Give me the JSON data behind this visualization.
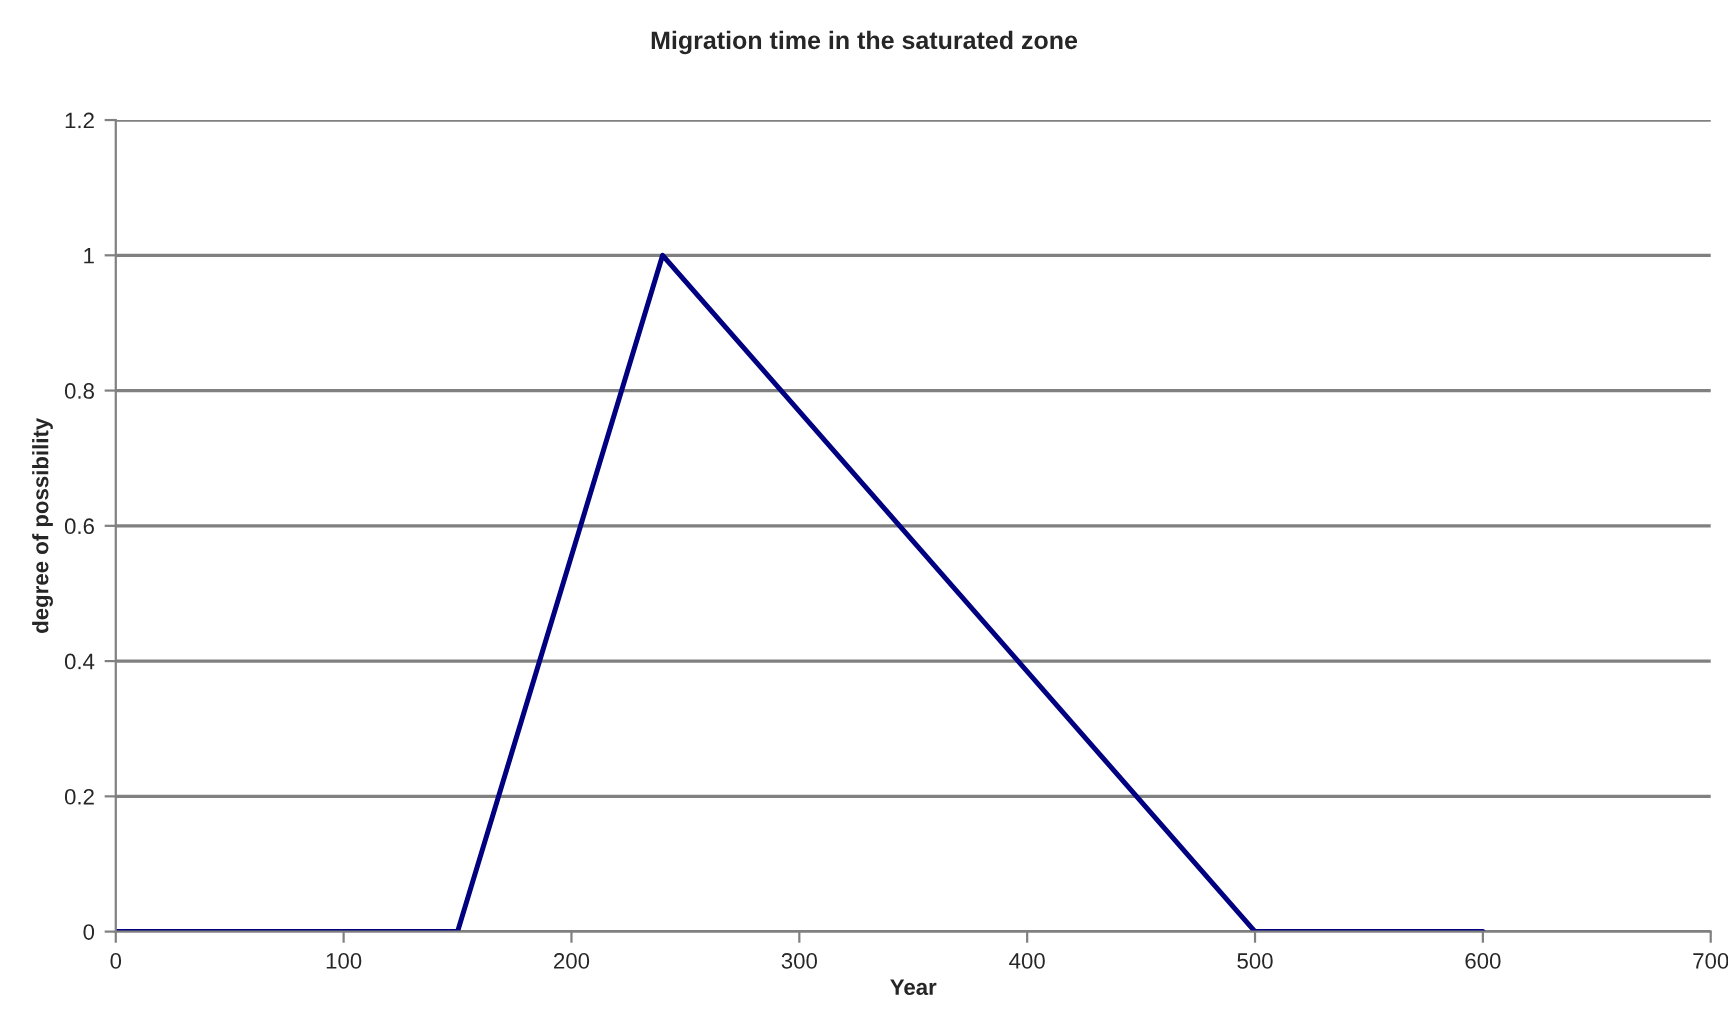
{
  "chart_data": {
    "type": "line",
    "title": "Migration time in the saturated zone",
    "xlabel": "Year",
    "ylabel": "degree of possibility",
    "x": [
      0,
      150,
      240,
      500,
      600
    ],
    "series": [
      {
        "color": "#000080",
        "values": [
          0,
          0,
          1,
          0,
          0
        ]
      }
    ],
    "xlim": [
      0,
      700
    ],
    "xticks": [
      0,
      100,
      200,
      300,
      400,
      500,
      600,
      700
    ],
    "ylim": [
      0,
      1.2
    ],
    "yticks": [
      0,
      0.2,
      0.4,
      0.6,
      0.8,
      1,
      1.2
    ],
    "grid": "y",
    "marker": "none",
    "line_style": "solid"
  }
}
